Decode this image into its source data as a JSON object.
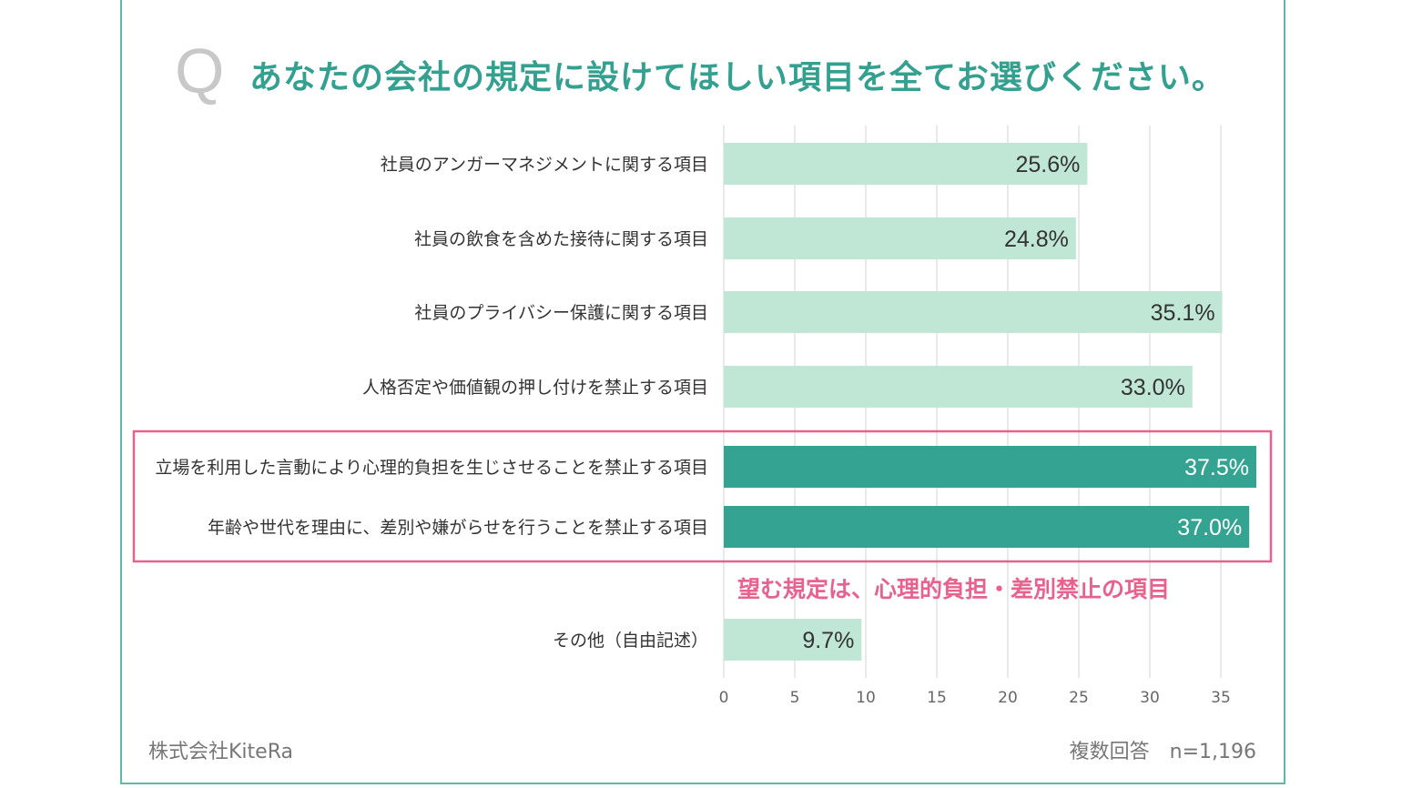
{
  "title": {
    "q_mark": "Q",
    "text": "あなたの会社の規定に設けてほしい項目を全てお選びください。"
  },
  "annotation": "望む規定は、心理的負担・差別禁止の項目",
  "footer": {
    "company": "株式会社KiteRa",
    "note": "複数回答　n=1,196"
  },
  "colors": {
    "light_bar": "#c0e6d6",
    "highlight_bar": "#35a392",
    "highlight_box": "#e8628e",
    "title": "#33a090"
  },
  "chart_data": {
    "type": "bar",
    "orientation": "horizontal",
    "categories": [
      "社員のアンガーマネジメントに関する項目",
      "社員の飲食を含めた接待に関する項目",
      "社員のプライバシー保護に関する項目",
      "人格否定や価値観の押し付けを禁止する項目",
      "立場を利用した言動により心理的負担を生じさせることを禁止する項目",
      "年齢や世代を理由に、差別や嫌がらせを行うことを禁止する項目",
      "その他（自由記述）"
    ],
    "values": [
      25.6,
      24.8,
      35.1,
      33.0,
      37.5,
      37.0,
      9.7
    ],
    "value_labels": [
      "25.6%",
      "24.8%",
      "35.1%",
      "33.0%",
      "37.5%",
      "37.0%",
      "9.7%"
    ],
    "highlighted": [
      false,
      false,
      false,
      false,
      true,
      true,
      false
    ],
    "xlim": [
      0,
      35
    ],
    "xticks": [
      "0",
      "5",
      "10",
      "15",
      "20",
      "25",
      "30",
      "35"
    ],
    "grid": true,
    "unit": "%"
  }
}
